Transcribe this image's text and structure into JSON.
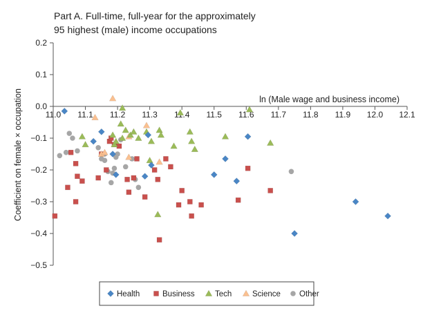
{
  "chart_data": {
    "type": "scatter",
    "title_lines": [
      "Part A. Full-time, full-year for the approximately",
      "95 highest (male) income occupations"
    ],
    "xlabel": "ln (Male wage and business income)",
    "ylabel": "Coefficient on female × occupation",
    "xlim": [
      11.0,
      12.1
    ],
    "ylim": [
      -0.5,
      0.2
    ],
    "x_ticks": [
      "11.0",
      "11.1",
      "11.2",
      "11.3",
      "11.4",
      "11.5",
      "11.6",
      "11.7",
      "11.8",
      "11.9",
      "12.0",
      "12.1"
    ],
    "y_ticks": [
      "0.2",
      "0.1",
      "0.0",
      "−0.1",
      "−0.2",
      "−0.3",
      "−0.4",
      "−0.5"
    ],
    "grid": false,
    "legend_position": "bottom",
    "series": [
      {
        "name": "Health",
        "marker": "diamond",
        "color": "#4a86c5",
        "points": [
          [
            11.035,
            -0.015
          ],
          [
            11.125,
            -0.11
          ],
          [
            11.15,
            -0.08
          ],
          [
            11.185,
            -0.15
          ],
          [
            11.195,
            -0.215
          ],
          [
            11.285,
            -0.22
          ],
          [
            11.295,
            -0.09
          ],
          [
            11.305,
            -0.185
          ],
          [
            11.5,
            -0.215
          ],
          [
            11.535,
            -0.165
          ],
          [
            11.57,
            -0.235
          ],
          [
            11.605,
            -0.095
          ],
          [
            11.75,
            -0.4
          ],
          [
            11.94,
            -0.3
          ],
          [
            12.04,
            -0.345
          ]
        ]
      },
      {
        "name": "Business",
        "marker": "square",
        "color": "#c9504d",
        "points": [
          [
            11.005,
            -0.345
          ],
          [
            11.045,
            -0.255
          ],
          [
            11.055,
            -0.145
          ],
          [
            11.07,
            -0.18
          ],
          [
            11.075,
            -0.22
          ],
          [
            11.07,
            -0.3
          ],
          [
            11.09,
            -0.235
          ],
          [
            11.14,
            -0.225
          ],
          [
            11.15,
            -0.15
          ],
          [
            11.165,
            -0.2
          ],
          [
            11.175,
            -0.11
          ],
          [
            11.18,
            -0.1
          ],
          [
            11.19,
            -0.12
          ],
          [
            11.205,
            -0.125
          ],
          [
            11.23,
            -0.23
          ],
          [
            11.235,
            -0.27
          ],
          [
            11.25,
            -0.225
          ],
          [
            11.26,
            -0.165
          ],
          [
            11.285,
            -0.285
          ],
          [
            11.315,
            -0.2
          ],
          [
            11.325,
            -0.23
          ],
          [
            11.33,
            -0.42
          ],
          [
            11.35,
            -0.165
          ],
          [
            11.365,
            -0.19
          ],
          [
            11.39,
            -0.31
          ],
          [
            11.4,
            -0.265
          ],
          [
            11.425,
            -0.3
          ],
          [
            11.43,
            -0.345
          ],
          [
            11.46,
            -0.31
          ],
          [
            11.575,
            -0.295
          ],
          [
            11.605,
            -0.195
          ],
          [
            11.675,
            -0.265
          ]
        ]
      },
      {
        "name": "Tech",
        "marker": "triangle",
        "color": "#9bbb59",
        "points": [
          [
            11.09,
            -0.095
          ],
          [
            11.1,
            -0.12
          ],
          [
            11.185,
            -0.09
          ],
          [
            11.19,
            -0.12
          ],
          [
            11.195,
            -0.11
          ],
          [
            11.21,
            -0.055
          ],
          [
            11.215,
            -0.005
          ],
          [
            11.215,
            -0.1
          ],
          [
            11.225,
            -0.075
          ],
          [
            11.24,
            -0.09
          ],
          [
            11.25,
            -0.08
          ],
          [
            11.265,
            -0.1
          ],
          [
            11.29,
            -0.08
          ],
          [
            11.3,
            -0.17
          ],
          [
            11.305,
            -0.11
          ],
          [
            11.325,
            -0.34
          ],
          [
            11.33,
            -0.075
          ],
          [
            11.335,
            -0.09
          ],
          [
            11.375,
            -0.125
          ],
          [
            11.395,
            -0.02
          ],
          [
            11.425,
            -0.08
          ],
          [
            11.43,
            -0.11
          ],
          [
            11.44,
            -0.135
          ],
          [
            11.535,
            -0.095
          ],
          [
            11.61,
            -0.01
          ],
          [
            11.675,
            -0.115
          ]
        ]
      },
      {
        "name": "Science",
        "marker": "triangle",
        "color": "#fac090",
        "points": [
          [
            11.13,
            -0.035
          ],
          [
            11.15,
            -0.15
          ],
          [
            11.16,
            -0.145
          ],
          [
            11.185,
            0.025
          ],
          [
            11.235,
            -0.095
          ],
          [
            11.235,
            -0.16
          ],
          [
            11.29,
            -0.06
          ],
          [
            11.33,
            -0.175
          ]
        ]
      },
      {
        "name": "Other",
        "marker": "circle",
        "color": "#a6a6a6",
        "points": [
          [
            11.02,
            -0.155
          ],
          [
            11.04,
            -0.145
          ],
          [
            11.05,
            -0.085
          ],
          [
            11.06,
            -0.1
          ],
          [
            11.075,
            -0.14
          ],
          [
            11.14,
            -0.13
          ],
          [
            11.15,
            -0.165
          ],
          [
            11.16,
            -0.17
          ],
          [
            11.16,
            -0.15
          ],
          [
            11.17,
            -0.205
          ],
          [
            11.18,
            -0.24
          ],
          [
            11.185,
            -0.21
          ],
          [
            11.19,
            -0.195
          ],
          [
            11.195,
            -0.16
          ],
          [
            11.2,
            -0.15
          ],
          [
            11.21,
            -0.105
          ],
          [
            11.225,
            -0.19
          ],
          [
            11.245,
            -0.165
          ],
          [
            11.255,
            -0.23
          ],
          [
            11.265,
            -0.255
          ],
          [
            11.74,
            -0.205
          ]
        ]
      }
    ]
  }
}
